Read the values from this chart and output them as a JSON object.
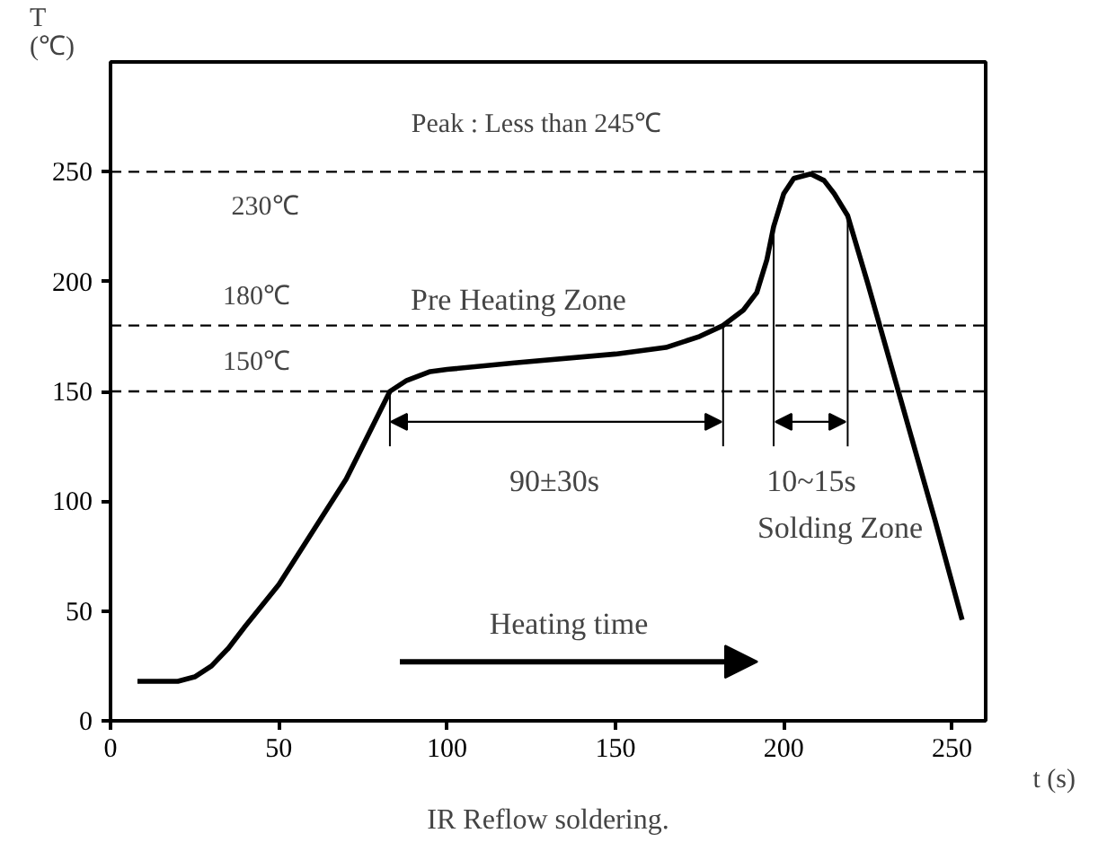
{
  "chart_data": {
    "type": "line",
    "title": "IR Reflow soldering.",
    "xlabel": "t (s)",
    "ylabel": "T\n(℃)",
    "x": [
      8,
      20,
      25,
      30,
      35,
      40,
      50,
      60,
      70,
      83,
      88,
      95,
      100,
      120,
      150,
      165,
      175,
      182,
      188,
      192,
      195,
      197,
      200,
      203,
      208,
      212,
      215,
      219,
      225,
      235,
      245,
      253
    ],
    "series": [
      {
        "color": "#000000",
        "values": [
          18,
          18,
          20,
          25,
          33,
          43,
          62,
          86,
          110,
          150,
          155,
          159,
          160,
          163,
          167,
          170,
          175,
          180,
          187,
          195,
          210,
          225,
          240,
          247,
          249,
          246,
          240,
          230,
          199,
          145,
          91,
          46
        ]
      },
      {
        "type": "line",
        "color": "#000000",
        "x": [
          83,
          83
        ],
        "values": [
          125,
          150
        ]
      },
      {
        "type": "line",
        "color": "#000000",
        "x": [
          182,
          182
        ],
        "values": [
          125,
          180
        ]
      },
      {
        "type": "line",
        "color": "#000000",
        "x": [
          197,
          197
        ],
        "values": [
          125,
          225
        ]
      },
      {
        "type": "line",
        "color": "#000000",
        "x": [
          219,
          219
        ],
        "values": [
          125,
          230
        ]
      }
    ],
    "xlim": [
      0,
      260
    ],
    "ylim": [
      0,
      300
    ],
    "xticks": [
      0,
      50,
      100,
      150,
      200,
      250
    ],
    "yticks": [
      0,
      50,
      100,
      150,
      200,
      250
    ],
    "grid": false,
    "marker": "none",
    "line_style": "solid",
    "ref_lines": [
      {
        "axis": "y",
        "value": 250,
        "line_style": "dashed"
      },
      {
        "axis": "y",
        "value": 180,
        "label": "180℃",
        "line_style": "dashed"
      },
      {
        "axis": "y",
        "value": 150,
        "label": "150℃",
        "line_style": "dashed"
      }
    ],
    "annotations": [
      "Peak : Less than 245℃",
      "230℃",
      "Pre Heating Zone",
      "Heating time",
      "Solding Zone",
      "90±30s",
      "10~15s"
    ]
  }
}
